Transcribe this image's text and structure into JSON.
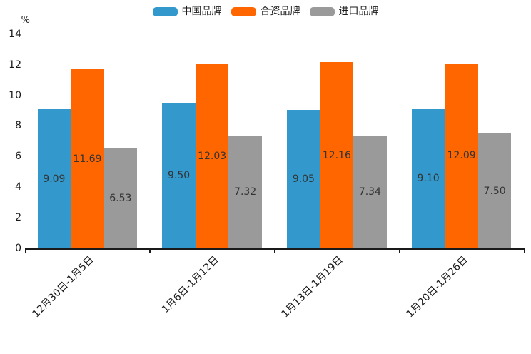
{
  "chart_data": {
    "type": "bar",
    "title": "",
    "unit_label": "%",
    "categories": [
      "12月30日-1月5日",
      "1月6日-1月12日",
      "1月13日-1月19日",
      "1月20日-1月26日"
    ],
    "series": [
      {
        "name": "中国品牌",
        "color": "#3398cc",
        "values": [
          9.09,
          9.5,
          9.05,
          9.1
        ]
      },
      {
        "name": "合资品牌",
        "color": "#ff6600",
        "values": [
          11.69,
          12.03,
          12.16,
          12.09
        ]
      },
      {
        "name": "进口品牌",
        "color": "#9a9a9a",
        "values": [
          6.53,
          7.32,
          7.34,
          7.5
        ]
      }
    ],
    "ylim": [
      0,
      14
    ],
    "yticks": [
      0,
      2,
      4,
      6,
      8,
      10,
      12,
      14
    ],
    "value_decimals": 2,
    "value_labels": "inside-center",
    "legend_position": "top",
    "grid": false,
    "axis_color": "#1a1a1a",
    "value_label_color": "#333333"
  }
}
